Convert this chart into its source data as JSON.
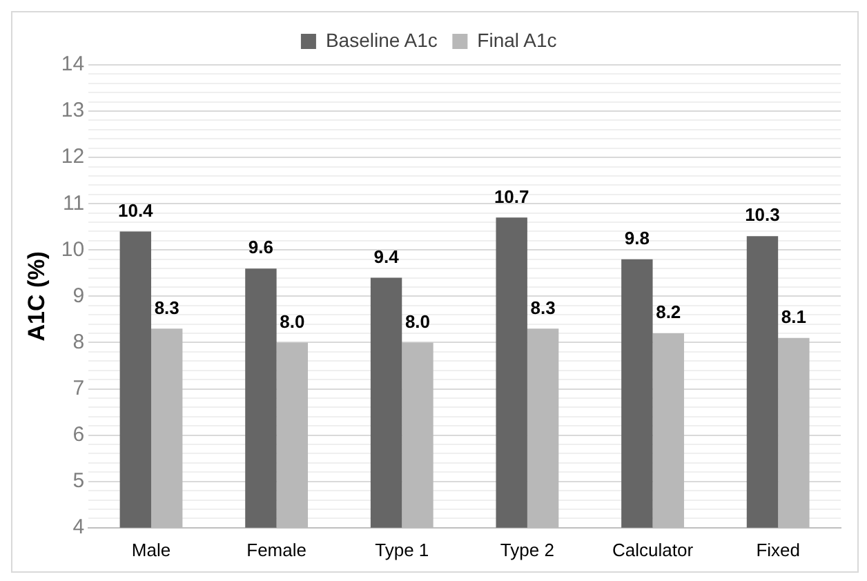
{
  "chart_data": {
    "type": "bar",
    "ylabel": "A1C (%)",
    "categories": [
      "Male",
      "Female",
      "Type 1",
      "Type 2",
      "Calculator",
      "Fixed"
    ],
    "series": [
      {
        "name": "Baseline A1c",
        "color": "#666666",
        "values": [
          10.4,
          9.6,
          9.4,
          10.7,
          9.8,
          10.3
        ],
        "value_labels": [
          "10.4",
          "9.6",
          "9.4",
          "10.7",
          "9.8",
          "10.3"
        ]
      },
      {
        "name": "Final A1c",
        "color": "#b8b8b8",
        "values": [
          8.3,
          8.0,
          8.0,
          8.3,
          8.2,
          8.1
        ],
        "value_labels": [
          "8.3",
          "8.0",
          "8.0",
          "8.3",
          "8.2",
          "8.1"
        ]
      }
    ],
    "ylim": [
      4,
      14
    ],
    "yticks": [
      4,
      {
        "value": 4.2,
        "label": null
      },
      {
        "value": 4.4,
        "label": null
      },
      {
        "value": 4.6,
        "label": null
      },
      {
        "value": 4.8,
        "label": null
      },
      5,
      {
        "value": 5.2,
        "label": null
      },
      {
        "value": 5.4,
        "label": null
      },
      {
        "value": 5.6,
        "label": null
      },
      {
        "value": 5.8,
        "label": null
      },
      6,
      {
        "value": 6.2,
        "label": null
      },
      {
        "value": 6.4,
        "label": null
      },
      {
        "value": 6.6,
        "label": null
      },
      {
        "value": 6.8,
        "label": null
      },
      7,
      {
        "value": 7.2,
        "label": null
      },
      {
        "value": 7.4,
        "label": null
      },
      {
        "value": 7.6,
        "label": null
      },
      {
        "value": 7.8,
        "label": null
      },
      8,
      {
        "value": 8.2,
        "label": null
      },
      {
        "value": 8.4,
        "label": null
      },
      {
        "value": 8.6,
        "label": null
      },
      {
        "value": 8.8,
        "label": null
      },
      9,
      {
        "value": 9.2,
        "label": null
      },
      {
        "value": 9.4,
        "label": null
      },
      {
        "value": 9.6,
        "label": null
      },
      {
        "value": 9.8,
        "label": null
      },
      10,
      {
        "value": 10.2,
        "label": null
      },
      {
        "value": 10.4,
        "label": null
      },
      {
        "value": 10.6,
        "label": null
      },
      {
        "value": 10.8,
        "label": null
      },
      11,
      {
        "value": 11.2,
        "label": null
      },
      {
        "value": 11.4,
        "label": null
      },
      {
        "value": 11.6,
        "label": null
      },
      {
        "value": 11.8,
        "label": null
      },
      12,
      {
        "value": 12.2,
        "label": null
      },
      {
        "value": 12.4,
        "label": null
      },
      {
        "value": 12.6,
        "label": null
      },
      {
        "value": 12.8,
        "label": null
      },
      13,
      {
        "value": 13.2,
        "label": null
      },
      {
        "value": 13.4,
        "label": null
      },
      {
        "value": 13.6,
        "label": null
      },
      {
        "value": 13.8,
        "label": null
      },
      14
    ],
    "grid": "y",
    "legend": "top"
  }
}
